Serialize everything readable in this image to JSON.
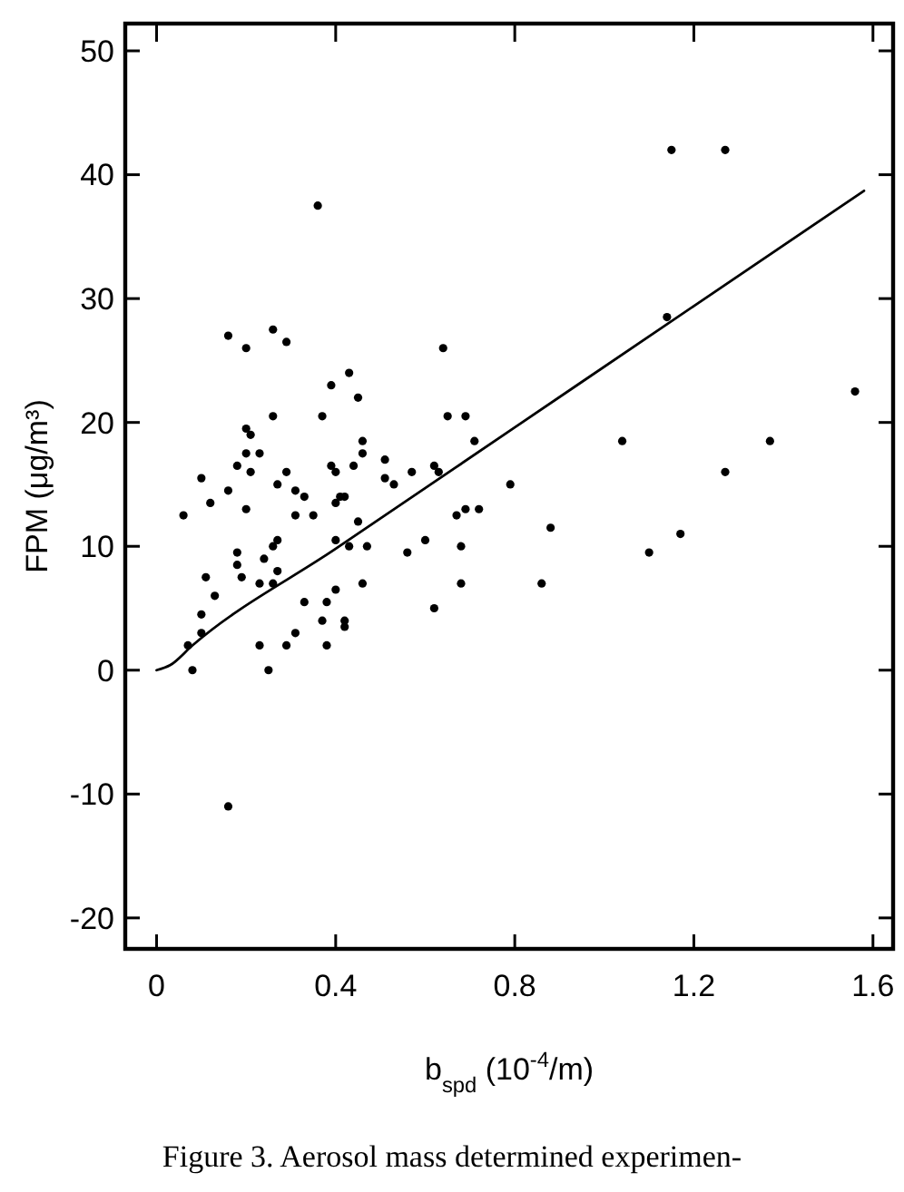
{
  "chart_data": {
    "type": "scatter",
    "xlabel": "b$_{spd}$ (10$^{-4}$/m)",
    "ylabel": "FPM (μg/m³)",
    "annotations": [
      "Figure 3. Aerosol mass determined experimen-"
    ],
    "xlim": [
      -0.07,
      1.645
    ],
    "ylim": [
      -22.5,
      52.2
    ],
    "xticks": [
      {
        "value": 0,
        "label": "0"
      },
      {
        "value": 0.4,
        "label": "0.4"
      },
      {
        "value": 0.8,
        "label": "0.8"
      },
      {
        "value": 1.2,
        "label": "1.2"
      },
      {
        "value": 1.6,
        "label": "1.6"
      }
    ],
    "yticks": [
      -20,
      -10,
      0,
      10,
      20,
      30,
      40,
      50
    ],
    "series": [
      {
        "color": "#000000",
        "marker": "circle",
        "x": [
          0.36,
          0.16,
          0.2,
          0.26,
          0.29,
          0.64,
          0.39,
          0.43,
          0.45,
          0.26,
          0.37,
          0.65,
          0.69,
          0.71,
          0.2,
          0.21,
          0.46,
          0.2,
          0.23,
          0.18,
          0.21,
          0.29,
          0.1,
          0.39,
          0.4,
          0.44,
          0.46,
          0.51,
          0.51,
          0.53,
          0.57,
          0.62,
          0.63,
          0.27,
          0.12,
          0.06,
          0.16,
          0.2,
          0.31,
          0.33,
          0.31,
          0.35,
          0.41,
          0.42,
          0.4,
          0.45,
          0.67,
          0.69,
          0.72,
          0.79,
          0.27,
          0.26,
          0.18,
          0.18,
          0.19,
          0.24,
          0.27,
          0.26,
          0.23,
          0.11,
          0.13,
          0.1,
          0.1,
          0.07,
          0.08,
          0.4,
          0.43,
          0.47,
          0.56,
          0.6,
          0.68,
          0.68,
          0.62,
          0.46,
          0.4,
          0.38,
          0.33,
          0.37,
          0.42,
          0.42,
          0.31,
          0.29,
          0.38,
          0.23,
          0.25,
          0.16,
          1.15,
          1.27,
          1.14,
          1.56,
          1.04,
          1.37,
          1.27,
          0.88,
          0.86,
          1.1,
          1.17
        ],
        "values": [
          37.5,
          27,
          26,
          27.5,
          26.5,
          26,
          23,
          24,
          22,
          20.5,
          20.5,
          20.5,
          20.5,
          18.5,
          19.5,
          19,
          18.5,
          17.5,
          17.5,
          16.5,
          16,
          16,
          15.5,
          16.5,
          16,
          16.5,
          17.5,
          17,
          15.5,
          15,
          16,
          16.5,
          16,
          15,
          13.5,
          12.5,
          14.5,
          13,
          14.5,
          14,
          12.5,
          12.5,
          14,
          14,
          13.5,
          12,
          12.5,
          13,
          13,
          15,
          10.5,
          10,
          9.5,
          8.5,
          7.5,
          9,
          8,
          7,
          7,
          7.5,
          6,
          4.5,
          3,
          2,
          0,
          10.5,
          10,
          10,
          9.5,
          10.5,
          10,
          7,
          5,
          7,
          6.5,
          5.5,
          5.5,
          4,
          4,
          3.5,
          3,
          2,
          2,
          2,
          0,
          -11,
          42,
          42,
          28.5,
          22.5,
          18.5,
          18.5,
          16,
          11.5,
          7,
          9.5,
          11
        ]
      },
      {
        "type": "line",
        "color": "#000000",
        "line_style": "solid",
        "x": [
          0,
          0.03,
          0.08,
          0.4,
          0.8,
          1.2,
          1.58
        ],
        "values": [
          0,
          0.4,
          2,
          9.8,
          19.6,
          29.4,
          38.7
        ]
      }
    ]
  }
}
